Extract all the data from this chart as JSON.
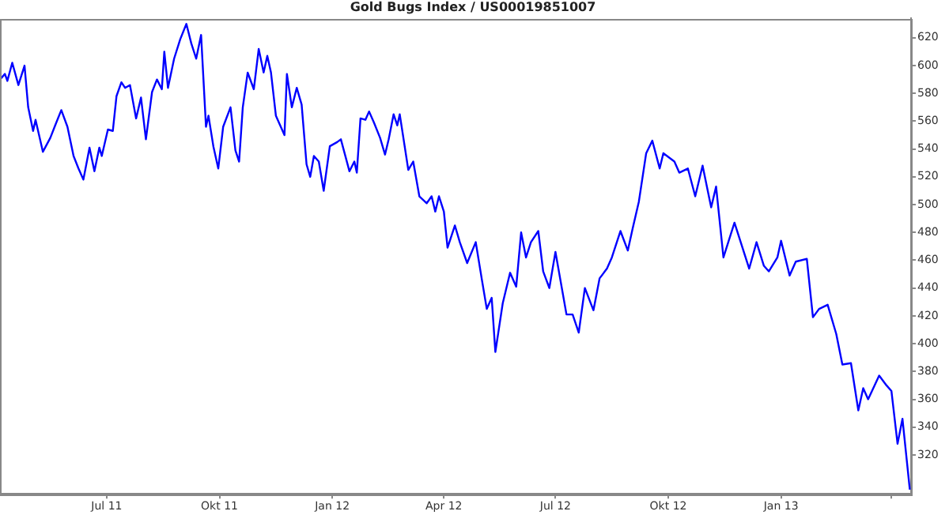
{
  "chart_data": {
    "type": "line",
    "title": "Gold Bugs Index / US00019851007",
    "x": [
      "2011-04-05",
      "2011-04-09",
      "2011-04-11",
      "2011-04-15",
      "2011-04-20",
      "2011-04-25",
      "2011-04-28",
      "2011-05-02",
      "2011-05-04",
      "2011-05-10",
      "2011-05-16",
      "2011-05-20",
      "2011-05-25",
      "2011-05-30",
      "2011-06-04",
      "2011-06-08",
      "2011-06-12",
      "2011-06-17",
      "2011-06-21",
      "2011-06-25",
      "2011-06-27",
      "2011-07-02",
      "2011-07-06",
      "2011-07-09",
      "2011-07-13",
      "2011-07-16",
      "2011-07-20",
      "2011-07-25",
      "2011-07-29",
      "2011-08-02",
      "2011-08-07",
      "2011-08-11",
      "2011-08-15",
      "2011-08-17",
      "2011-08-20",
      "2011-08-25",
      "2011-08-30",
      "2011-09-04",
      "2011-09-08",
      "2011-09-12",
      "2011-09-16",
      "2011-09-20",
      "2011-09-22",
      "2011-09-26",
      "2011-09-30",
      "2011-10-04",
      "2011-10-10",
      "2011-10-14",
      "2011-10-17",
      "2011-10-20",
      "2011-10-24",
      "2011-10-29",
      "2011-11-02",
      "2011-11-06",
      "2011-11-09",
      "2011-11-12",
      "2011-11-16",
      "2011-11-23",
      "2011-11-25",
      "2011-11-29",
      "2011-12-03",
      "2011-12-07",
      "2011-12-11",
      "2011-12-14",
      "2011-12-17",
      "2011-12-21",
      "2011-12-25",
      "2011-12-30",
      "2012-01-05",
      "2012-01-08",
      "2012-01-15",
      "2012-01-19",
      "2012-01-21",
      "2012-01-24",
      "2012-01-28",
      "2012-01-31",
      "2012-02-04",
      "2012-02-09",
      "2012-02-13",
      "2012-02-16",
      "2012-02-20",
      "2012-02-23",
      "2012-02-25",
      "2012-03-03",
      "2012-03-07",
      "2012-03-12",
      "2012-03-18",
      "2012-03-22",
      "2012-03-25",
      "2012-03-28",
      "2012-04-01",
      "2012-04-04",
      "2012-04-10",
      "2012-04-14",
      "2012-04-20",
      "2012-04-27",
      "2012-05-02",
      "2012-05-06",
      "2012-05-10",
      "2012-05-13",
      "2012-05-19",
      "2012-05-25",
      "2012-05-30",
      "2012-06-03",
      "2012-06-07",
      "2012-06-11",
      "2012-06-17",
      "2012-06-21",
      "2012-06-26",
      "2012-07-01",
      "2012-07-10",
      "2012-07-15",
      "2012-07-20",
      "2012-07-25",
      "2012-08-01",
      "2012-08-06",
      "2012-08-12",
      "2012-08-16",
      "2012-08-23",
      "2012-08-29",
      "2012-09-02",
      "2012-09-07",
      "2012-09-13",
      "2012-09-18",
      "2012-09-24",
      "2012-09-27",
      "2012-10-06",
      "2012-10-10",
      "2012-10-17",
      "2012-10-23",
      "2012-10-29",
      "2012-11-05",
      "2012-11-09",
      "2012-11-15",
      "2012-11-24",
      "2012-12-06",
      "2012-12-12",
      "2012-12-18",
      "2012-12-22",
      "2012-12-29",
      "2013-01-01",
      "2013-01-08",
      "2013-01-13",
      "2013-01-22",
      "2013-01-27",
      "2013-02-01",
      "2013-02-08",
      "2013-02-15",
      "2013-02-20",
      "2013-02-27",
      "2013-03-05",
      "2013-03-09",
      "2013-03-13",
      "2013-03-22",
      "2013-03-28",
      "2013-04-01",
      "2013-04-06",
      "2013-04-10",
      "2013-04-16"
    ],
    "series": [
      {
        "color": "#0000ff",
        "values": [
          590,
          594,
          589,
          602,
          586,
          600,
          570,
          553,
          561,
          538,
          548,
          557,
          568,
          556,
          535,
          526,
          518,
          541,
          524,
          541,
          535,
          554,
          553,
          578,
          588,
          584,
          586,
          562,
          577,
          547,
          581,
          590,
          583,
          610,
          584,
          605,
          619,
          630,
          616,
          605,
          622,
          556,
          564,
          542,
          526,
          556,
          570,
          539,
          531,
          570,
          595,
          583,
          612,
          595,
          607,
          595,
          564,
          550,
          594,
          570,
          584,
          572,
          529,
          520,
          535,
          531,
          510,
          542,
          545,
          547,
          524,
          531,
          523,
          562,
          561,
          567,
          559,
          548,
          536,
          547,
          565,
          557,
          565,
          525,
          531,
          506,
          501,
          506,
          495,
          506,
          495,
          469,
          485,
          473,
          458,
          473,
          446,
          425,
          433,
          394,
          429,
          451,
          441,
          480,
          462,
          473,
          481,
          452,
          440,
          466,
          421,
          421,
          408,
          440,
          424,
          447,
          454,
          462,
          481,
          467,
          483,
          502,
          537,
          546,
          526,
          537,
          531,
          523,
          526,
          506,
          528,
          498,
          513,
          462,
          487,
          454,
          473,
          456,
          452,
          462,
          474,
          449,
          459,
          461,
          419,
          425,
          428,
          407,
          385,
          386,
          352,
          368,
          360,
          377,
          370,
          366,
          328,
          346,
          295
        ]
      }
    ],
    "xlim": [
      "2011-04-05",
      "2013-04-17"
    ],
    "xticks": [
      {
        "value": "2011-07-01",
        "label": "Jul 11"
      },
      {
        "value": "2011-10-01",
        "label": "Okt 11"
      },
      {
        "value": "2012-01-01",
        "label": "Jan 12"
      },
      {
        "value": "2012-04-01",
        "label": "Apr 12"
      },
      {
        "value": "2012-07-01",
        "label": "Jul 12"
      },
      {
        "value": "2012-10-01",
        "label": "Okt 12"
      },
      {
        "value": "2013-01-01",
        "label": "Jan 13"
      },
      {
        "value": "2013-04-01",
        "label": null
      }
    ],
    "ylim": [
      292,
      634
    ],
    "yticks": [
      320,
      340,
      360,
      380,
      400,
      420,
      440,
      460,
      480,
      500,
      520,
      540,
      560,
      580,
      600,
      620
    ],
    "grid": false,
    "legend": false
  }
}
